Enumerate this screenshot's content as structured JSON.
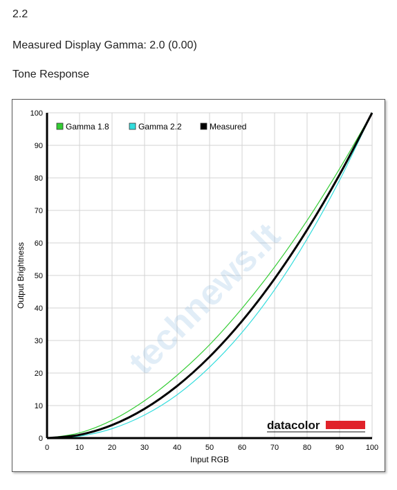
{
  "header": {
    "version": "2.2",
    "gamma_line": "Measured Display Gamma: 2.0 (0.00)",
    "section_title": "Tone Response"
  },
  "brand": {
    "logo_text": "datacolor",
    "logo_bar_color": "#e0222a"
  },
  "watermark": {
    "text": "technews.lt",
    "color": "#5b9bd5"
  },
  "chart_data": {
    "type": "line",
    "xlabel": "Input RGB",
    "ylabel": "Output Brightness",
    "xlim": [
      0,
      100
    ],
    "ylim": [
      0,
      100
    ],
    "xticks": [
      0,
      10,
      20,
      30,
      40,
      50,
      60,
      70,
      80,
      90,
      100
    ],
    "yticks": [
      0,
      10,
      20,
      30,
      40,
      50,
      60,
      70,
      80,
      90,
      100
    ],
    "grid": true,
    "legend_position": "top-left",
    "series": [
      {
        "name": "Gamma 1.8",
        "color": "#33cc33",
        "x": [
          0,
          10,
          20,
          30,
          40,
          50,
          60,
          70,
          80,
          90,
          100
        ],
        "y": [
          0,
          1.6,
          5.5,
          11.5,
          19.3,
          28.7,
          39.9,
          52.6,
          66.9,
          82.8,
          100
        ]
      },
      {
        "name": "Gamma 2.2",
        "color": "#33dddd",
        "x": [
          0,
          10,
          20,
          30,
          40,
          50,
          60,
          70,
          80,
          90,
          100
        ],
        "y": [
          0,
          0.6,
          2.9,
          7.1,
          13.3,
          21.8,
          32.5,
          45.6,
          61.2,
          79.3,
          100
        ]
      },
      {
        "name": "Measured",
        "color": "#000000",
        "x": [
          0,
          10,
          20,
          30,
          40,
          50,
          60,
          70,
          80,
          90,
          100
        ],
        "y": [
          0,
          1.0,
          4.0,
          9.0,
          16.0,
          25.0,
          36.0,
          49.0,
          64.0,
          81.0,
          100
        ]
      }
    ]
  }
}
